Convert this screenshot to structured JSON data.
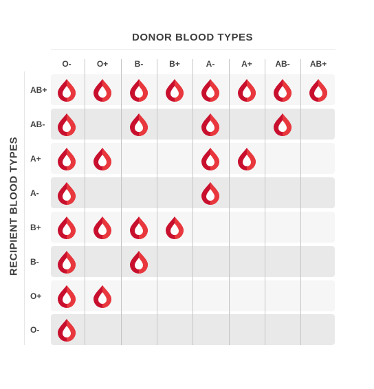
{
  "title": "DONOR BLOOD TYPES",
  "recipient_title": "RECIPIENT BLOOD TYPES",
  "colors": {
    "drop_dark": "#c8102e",
    "drop_light": "#e8383d",
    "band_light": "#f6f6f6",
    "band_dark": "#e9e9e9"
  },
  "icon": "blood-drop-icon",
  "chart_data": {
    "type": "table",
    "columns": [
      "O-",
      "O+",
      "B-",
      "B+",
      "A-",
      "A+",
      "AB-",
      "AB+"
    ],
    "rows": [
      "AB+",
      "AB-",
      "A+",
      "A-",
      "B+",
      "B-",
      "O+",
      "O-"
    ],
    "compatible": [
      [
        1,
        1,
        1,
        1,
        1,
        1,
        1,
        1
      ],
      [
        1,
        0,
        1,
        0,
        1,
        0,
        1,
        0
      ],
      [
        1,
        1,
        0,
        0,
        1,
        1,
        0,
        0
      ],
      [
        1,
        0,
        0,
        0,
        1,
        0,
        0,
        0
      ],
      [
        1,
        1,
        1,
        1,
        0,
        0,
        0,
        0
      ],
      [
        1,
        0,
        1,
        0,
        0,
        0,
        0,
        0
      ],
      [
        1,
        1,
        0,
        0,
        0,
        0,
        0,
        0
      ],
      [
        1,
        0,
        0,
        0,
        0,
        0,
        0,
        0
      ]
    ]
  }
}
